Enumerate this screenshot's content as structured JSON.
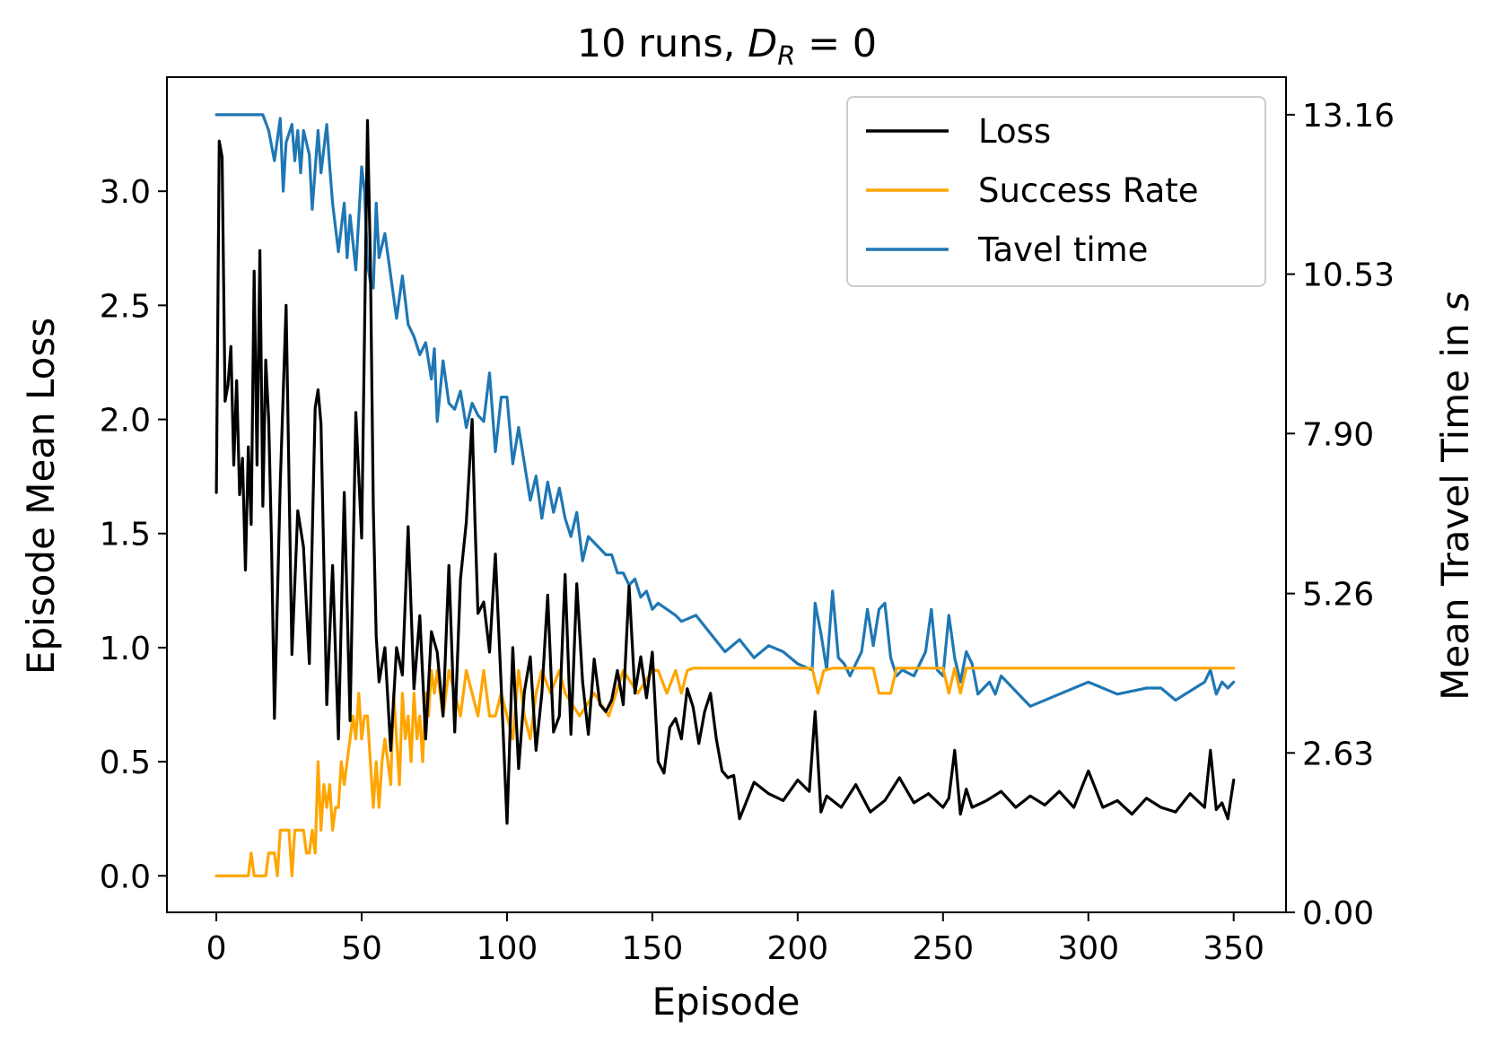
{
  "chart_data": {
    "type": "line",
    "title_main": "10 runs, ",
    "title_var": "D",
    "title_sub": "R",
    "title_tail": " = 0",
    "xlabel": "Episode",
    "ylabel_left": "Episode Mean Loss",
    "ylabel_right": "Mean Travel Time in ",
    "ylabel_right_unit": "s",
    "xlim": [
      -17,
      368
    ],
    "ylim_left": [
      -0.16,
      3.5
    ],
    "ylim_right": [
      0.0,
      13.78
    ],
    "x_ticks": [
      0,
      50,
      100,
      150,
      200,
      250,
      300,
      350
    ],
    "y_ticks_left": [
      "0.0",
      "0.5",
      "1.0",
      "1.5",
      "2.0",
      "2.5",
      "3.0"
    ],
    "y_ticks_right": [
      "0.00",
      "2.63",
      "5.26",
      "7.90",
      "10.53",
      "13.16"
    ],
    "legend_position": "upper right",
    "series": [
      {
        "name": "Loss",
        "axis": "left",
        "color": "#000000",
        "x": [
          0,
          1,
          2,
          3,
          4,
          5,
          6,
          7,
          8,
          9,
          10,
          11,
          12,
          13,
          14,
          15,
          16,
          17,
          18,
          19,
          20,
          22,
          24,
          26,
          28,
          30,
          32,
          34,
          35,
          36,
          38,
          40,
          42,
          44,
          46,
          48,
          50,
          52,
          53,
          54,
          55,
          56,
          58,
          60,
          62,
          64,
          66,
          68,
          70,
          72,
          74,
          76,
          78,
          80,
          82,
          84,
          86,
          88,
          89,
          90,
          92,
          94,
          96,
          98,
          100,
          102,
          104,
          106,
          108,
          110,
          112,
          114,
          116,
          118,
          120,
          122,
          124,
          126,
          128,
          130,
          132,
          134,
          136,
          138,
          140,
          142,
          144,
          146,
          148,
          150,
          152,
          154,
          156,
          158,
          160,
          162,
          164,
          166,
          168,
          170,
          172,
          174,
          176,
          178,
          180,
          185,
          190,
          195,
          200,
          204,
          206,
          208,
          210,
          215,
          220,
          225,
          230,
          235,
          240,
          245,
          250,
          252,
          254,
          256,
          258,
          260,
          265,
          270,
          275,
          280,
          285,
          290,
          295,
          300,
          305,
          310,
          315,
          320,
          325,
          330,
          335,
          340,
          342,
          344,
          346,
          348,
          350
        ],
        "values": [
          1.68,
          3.22,
          3.15,
          2.08,
          2.15,
          2.32,
          1.8,
          2.17,
          1.67,
          1.83,
          1.34,
          1.88,
          1.54,
          2.65,
          1.8,
          2.74,
          1.62,
          2.26,
          2.0,
          1.45,
          0.69,
          1.72,
          2.5,
          0.97,
          1.6,
          1.44,
          0.93,
          2.05,
          2.13,
          1.98,
          0.75,
          1.36,
          0.6,
          1.68,
          0.68,
          2.03,
          1.48,
          3.31,
          2.7,
          1.61,
          1.05,
          0.85,
          1.0,
          0.55,
          1.0,
          0.88,
          1.53,
          0.82,
          1.14,
          0.6,
          1.07,
          0.98,
          0.7,
          1.36,
          0.63,
          1.3,
          1.55,
          2.0,
          1.55,
          1.15,
          1.2,
          0.98,
          1.41,
          0.83,
          0.23,
          1.0,
          0.47,
          0.81,
          0.96,
          0.55,
          0.8,
          1.23,
          0.63,
          0.7,
          1.32,
          0.62,
          1.28,
          0.85,
          0.62,
          0.95,
          0.75,
          0.72,
          0.77,
          0.9,
          0.75,
          1.27,
          0.8,
          0.96,
          0.78,
          0.98,
          0.5,
          0.45,
          0.65,
          0.69,
          0.6,
          0.82,
          0.74,
          0.58,
          0.72,
          0.8,
          0.6,
          0.46,
          0.43,
          0.44,
          0.25,
          0.41,
          0.36,
          0.33,
          0.42,
          0.37,
          0.72,
          0.28,
          0.35,
          0.3,
          0.4,
          0.28,
          0.33,
          0.43,
          0.32,
          0.36,
          0.3,
          0.34,
          0.55,
          0.27,
          0.38,
          0.3,
          0.33,
          0.37,
          0.3,
          0.35,
          0.31,
          0.37,
          0.3,
          0.46,
          0.3,
          0.33,
          0.27,
          0.34,
          0.3,
          0.28,
          0.36,
          0.3,
          0.55,
          0.29,
          0.32,
          0.25,
          0.42
        ]
      },
      {
        "name": "Success Rate",
        "axis": "left",
        "color": "#ffa500",
        "x": [
          0,
          8,
          10,
          11,
          12,
          13,
          15,
          17,
          18,
          20,
          21,
          22,
          23,
          25,
          26,
          27,
          28,
          30,
          31,
          32,
          33,
          34,
          35,
          36,
          37,
          38,
          39,
          40,
          41,
          42,
          43,
          44,
          45,
          46,
          47,
          48,
          49,
          50,
          51,
          52,
          53,
          54,
          55,
          56,
          57,
          58,
          59,
          60,
          61,
          62,
          63,
          64,
          65,
          66,
          67,
          68,
          69,
          70,
          71,
          72,
          73,
          74,
          75,
          76,
          78,
          80,
          82,
          84,
          86,
          88,
          90,
          92,
          94,
          96,
          98,
          100,
          102,
          104,
          106,
          108,
          110,
          112,
          115,
          118,
          120,
          125,
          130,
          135,
          140,
          145,
          150,
          152,
          155,
          158,
          160,
          162,
          164,
          205,
          207,
          209,
          212,
          226,
          228,
          232,
          234,
          250,
          252,
          254,
          256,
          258,
          350
        ],
        "values": [
          0.0,
          0.0,
          0.0,
          0.0,
          0.1,
          0.0,
          0.0,
          0.0,
          0.1,
          0.1,
          0.0,
          0.2,
          0.2,
          0.2,
          0.0,
          0.2,
          0.2,
          0.2,
          0.1,
          0.1,
          0.2,
          0.1,
          0.5,
          0.2,
          0.4,
          0.3,
          0.4,
          0.2,
          0.3,
          0.3,
          0.5,
          0.4,
          0.5,
          0.6,
          0.7,
          0.6,
          0.8,
          0.6,
          0.7,
          0.7,
          0.5,
          0.3,
          0.5,
          0.3,
          0.5,
          0.6,
          0.5,
          0.4,
          0.8,
          0.6,
          0.4,
          0.8,
          0.6,
          0.7,
          0.5,
          0.8,
          0.6,
          0.7,
          0.5,
          0.8,
          0.7,
          0.9,
          0.8,
          0.9,
          0.7,
          0.9,
          0.8,
          0.7,
          0.9,
          0.8,
          0.7,
          0.9,
          0.7,
          0.7,
          0.8,
          0.7,
          0.6,
          0.9,
          0.7,
          0.6,
          0.8,
          0.9,
          0.8,
          0.9,
          0.8,
          0.7,
          0.8,
          0.7,
          0.9,
          0.8,
          0.9,
          0.9,
          0.8,
          0.9,
          0.8,
          0.9,
          0.91,
          0.91,
          0.8,
          0.9,
          0.91,
          0.91,
          0.8,
          0.8,
          0.91,
          0.91,
          0.8,
          0.91,
          0.8,
          0.91,
          0.91
        ]
      },
      {
        "name": "Tavel time",
        "axis": "right",
        "color": "#1f77b4",
        "x": [
          0,
          5,
          10,
          12,
          14,
          16,
          18,
          20,
          22,
          23,
          24,
          26,
          27,
          28,
          29,
          30,
          32,
          33,
          35,
          36,
          38,
          39,
          40,
          42,
          43,
          44,
          45,
          46,
          48,
          50,
          51,
          52,
          53,
          54,
          55,
          56,
          58,
          60,
          62,
          64,
          65,
          66,
          68,
          70,
          72,
          74,
          75,
          76,
          78,
          80,
          82,
          84,
          86,
          88,
          90,
          92,
          94,
          96,
          98,
          100,
          102,
          104,
          106,
          108,
          110,
          112,
          114,
          116,
          118,
          120,
          122,
          124,
          126,
          128,
          130,
          132,
          134,
          136,
          138,
          140,
          142,
          144,
          146,
          148,
          150,
          152,
          155,
          158,
          160,
          165,
          170,
          175,
          180,
          185,
          190,
          195,
          200,
          205,
          206,
          208,
          210,
          212,
          214,
          216,
          218,
          220,
          222,
          224,
          226,
          228,
          230,
          232,
          234,
          236,
          240,
          244,
          246,
          248,
          250,
          252,
          254,
          256,
          258,
          260,
          262,
          264,
          266,
          268,
          270,
          280,
          290,
          300,
          310,
          320,
          325,
          330,
          340,
          342,
          344,
          346,
          348,
          350
        ],
        "values": [
          13.16,
          13.16,
          13.16,
          13.16,
          13.16,
          13.16,
          12.9,
          12.4,
          13.1,
          11.9,
          12.7,
          13.0,
          12.4,
          12.9,
          12.2,
          12.9,
          12.5,
          11.6,
          12.9,
          12.2,
          13.0,
          12.3,
          11.7,
          10.9,
          11.3,
          11.7,
          10.8,
          11.5,
          10.6,
          12.3,
          11.9,
          10.7,
          10.4,
          10.3,
          11.7,
          10.8,
          11.2,
          10.5,
          9.8,
          10.5,
          10.1,
          9.7,
          9.5,
          9.2,
          9.4,
          8.8,
          9.3,
          8.1,
          9.1,
          8.4,
          8.3,
          8.6,
          8.0,
          8.4,
          8.2,
          8.1,
          8.9,
          7.6,
          8.5,
          8.5,
          7.4,
          8.0,
          7.4,
          6.8,
          7.2,
          6.5,
          7.1,
          6.6,
          7.0,
          6.5,
          6.2,
          6.6,
          5.8,
          6.2,
          6.1,
          6.0,
          5.9,
          5.9,
          5.6,
          5.6,
          5.4,
          5.5,
          5.2,
          5.3,
          5.0,
          5.1,
          5.0,
          4.9,
          4.8,
          4.9,
          4.6,
          4.3,
          4.5,
          4.2,
          4.4,
          4.3,
          4.1,
          4.0,
          5.1,
          4.6,
          4.0,
          5.3,
          4.2,
          4.1,
          3.9,
          4.1,
          4.3,
          5.0,
          4.4,
          5.0,
          5.1,
          4.2,
          3.9,
          4.0,
          3.9,
          4.3,
          5.0,
          4.0,
          3.9,
          4.9,
          4.2,
          3.8,
          4.3,
          4.1,
          3.6,
          3.7,
          3.8,
          3.6,
          3.9,
          3.4,
          3.6,
          3.8,
          3.6,
          3.7,
          3.7,
          3.5,
          3.8,
          4.0,
          3.6,
          3.8,
          3.7,
          3.8
        ]
      }
    ]
  }
}
